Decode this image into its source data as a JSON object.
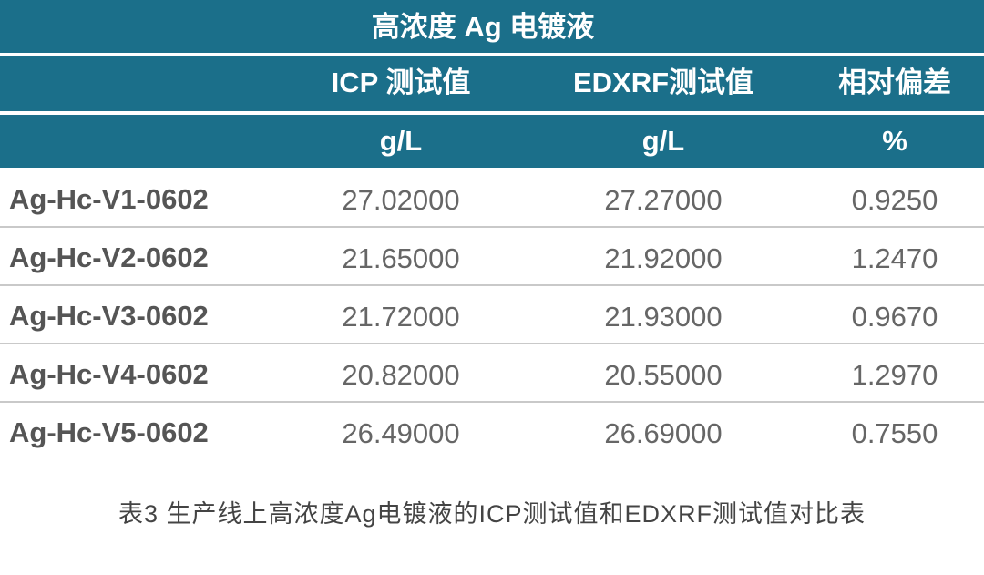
{
  "table": {
    "title": "高浓度 Ag 电镀液",
    "headers": [
      "ICP 测试值",
      "EDXRF测试值",
      "相对偏差"
    ],
    "units": [
      "g/L",
      "g/L",
      "%"
    ],
    "rows": [
      [
        "Ag-Hc-V1-0602",
        "27.02000",
        "27.27000",
        "0.9250"
      ],
      [
        "Ag-Hc-V2-0602",
        "21.65000",
        "21.92000",
        "1.2470"
      ],
      [
        "Ag-Hc-V3-0602",
        "21.72000",
        "21.93000",
        "0.9670"
      ],
      [
        "Ag-Hc-V4-0602",
        "20.82000",
        "20.55000",
        "1.2970"
      ],
      [
        "Ag-Hc-V5-0602",
        "26.49000",
        "26.69000",
        "0.7550"
      ]
    ],
    "caption": "表3 生产线上高浓度Ag电镀液的ICP测试值和EDXRF测试值对比表"
  }
}
